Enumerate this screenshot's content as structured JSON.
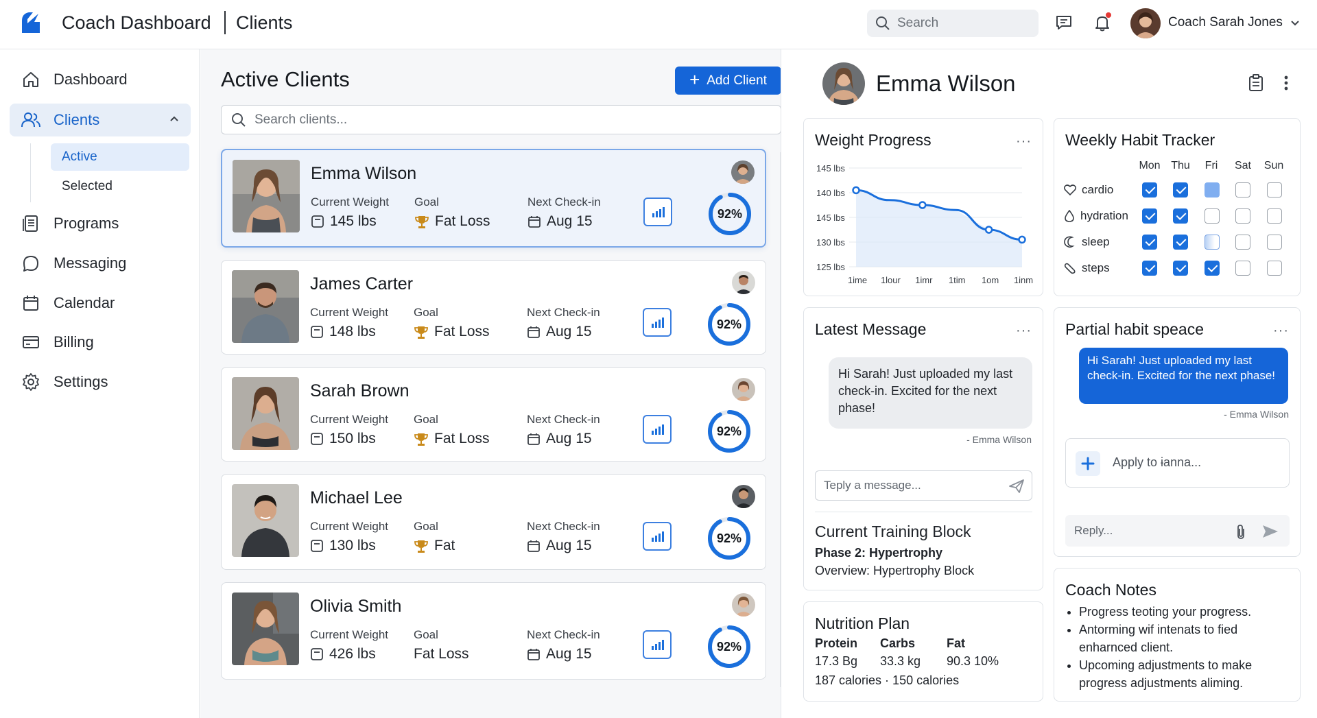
{
  "topbar": {
    "app_title": "Coach Dashboard",
    "section_title": "Clients",
    "search_placeholder": "Search",
    "user_name": "Coach Sarah Jones"
  },
  "sidebar": {
    "items": [
      {
        "label": "Dashboard",
        "icon": "home-icon"
      },
      {
        "label": "Clients",
        "icon": "users-icon"
      },
      {
        "label": "Programs",
        "icon": "document-icon"
      },
      {
        "label": "Messaging",
        "icon": "chat-icon"
      },
      {
        "label": "Calendar",
        "icon": "calendar-icon"
      },
      {
        "label": "Billing",
        "icon": "card-icon"
      },
      {
        "label": "Settings",
        "icon": "gear-icon"
      }
    ],
    "subitems": [
      {
        "label": "Active"
      },
      {
        "label": "Selected"
      }
    ]
  },
  "clients": {
    "title": "Active Clients",
    "add_label": "Add Client",
    "search_placeholder": "Search clients...",
    "labels": {
      "weight": "Current Weight",
      "goal": "Goal",
      "checkin": "Next Check-in"
    },
    "list": [
      {
        "name": "Emma Wilson",
        "weight": "145 lbs",
        "goal": "Fat Loss",
        "checkin": "Aug 15",
        "progress": "92%",
        "progress_value": 0.92
      },
      {
        "name": "James Carter",
        "weight": "148 lbs",
        "goal": "Fat Loss",
        "checkin": "Aug 15",
        "progress": "92%",
        "progress_value": 0.92
      },
      {
        "name": "Sarah Brown",
        "weight": "150 lbs",
        "goal": "Fat Loss",
        "checkin": "Aug 15",
        "progress": "92%",
        "progress_value": 0.92
      },
      {
        "name": "Michael Lee",
        "weight": "130 lbs",
        "goal": "Fat",
        "checkin": "Aug 15",
        "progress": "92%",
        "progress_value": 0.92
      },
      {
        "name": "Olivia Smith",
        "weight": "426 lbs",
        "goal": "Fat Loss",
        "checkin": "Aug 15",
        "progress": "92%",
        "progress_value": 0.92
      }
    ]
  },
  "detail": {
    "name": "Emma Wilson",
    "weight_panel": {
      "title": "Weight Progress",
      "more": "···"
    },
    "habit_panel": {
      "title": "Weekly Habit Tracker",
      "days": [
        "Mon",
        "Thu",
        "Fri",
        "Sat",
        "Sun"
      ],
      "habits": [
        {
          "label": "cardio",
          "states": [
            "on",
            "on",
            "partial",
            "off",
            "off"
          ]
        },
        {
          "label": "hydration",
          "states": [
            "on",
            "on",
            "off",
            "off",
            "off"
          ]
        },
        {
          "label": "sleep",
          "states": [
            "on",
            "on",
            "half",
            "off",
            "off"
          ]
        },
        {
          "label": "steps",
          "states": [
            "on",
            "on",
            "on",
            "off",
            "off"
          ]
        }
      ]
    },
    "message_panel": {
      "title": "Latest Message",
      "message": "Hi Sarah! Just uploaded my last check-in. Excited for the next phase!",
      "sender": "- Emma Wilson",
      "reply_placeholder": "Teply a message..."
    },
    "training": {
      "title": "Current Training Block",
      "phase": "Phase 2: Hypertrophy",
      "overview": "Overview: Hypertrophy Block"
    },
    "nutrition": {
      "title": "Nutrition Plan",
      "headers": [
        "Protein",
        "Carbs",
        "Fat"
      ],
      "values": [
        "17.3 Bg",
        "33.3 kg",
        "90.3 10%"
      ],
      "calories": "187 calories · 150 calories"
    },
    "partial_panel": {
      "title": "Partial habit speace",
      "message": "Hi Sarah! Just uploaded my last check-in. Excited for the next phase!",
      "sender": "- Emma Wilson",
      "apply_label": "Apply to ɨanna...",
      "reply_placeholder": "Reply..."
    },
    "notes_panel": {
      "title": "Coach Notes",
      "items": [
        "Progress teoting your progress.",
        "Antorming wif intenats to fied enharnced client.",
        "Upcoming adjustments to make progress adjustments aliming."
      ]
    }
  },
  "chart_data": {
    "type": "line",
    "title": "Weight Progress",
    "x": [
      "1ime",
      "1lour",
      "1imr",
      "1tim",
      "1om",
      "1inm"
    ],
    "y_tick_labels": [
      "145 lbs",
      "140 lbs",
      "145 lbs",
      "130 lbs",
      "125 lbs"
    ],
    "ylim": [
      125,
      145
    ],
    "series": [
      {
        "values": [
          140.5,
          138.5,
          137.5,
          136.5,
          132.5,
          130.5
        ]
      }
    ],
    "markers_at": [
      0,
      2,
      4,
      5
    ],
    "color": "#1a6fdc",
    "grid": true
  }
}
